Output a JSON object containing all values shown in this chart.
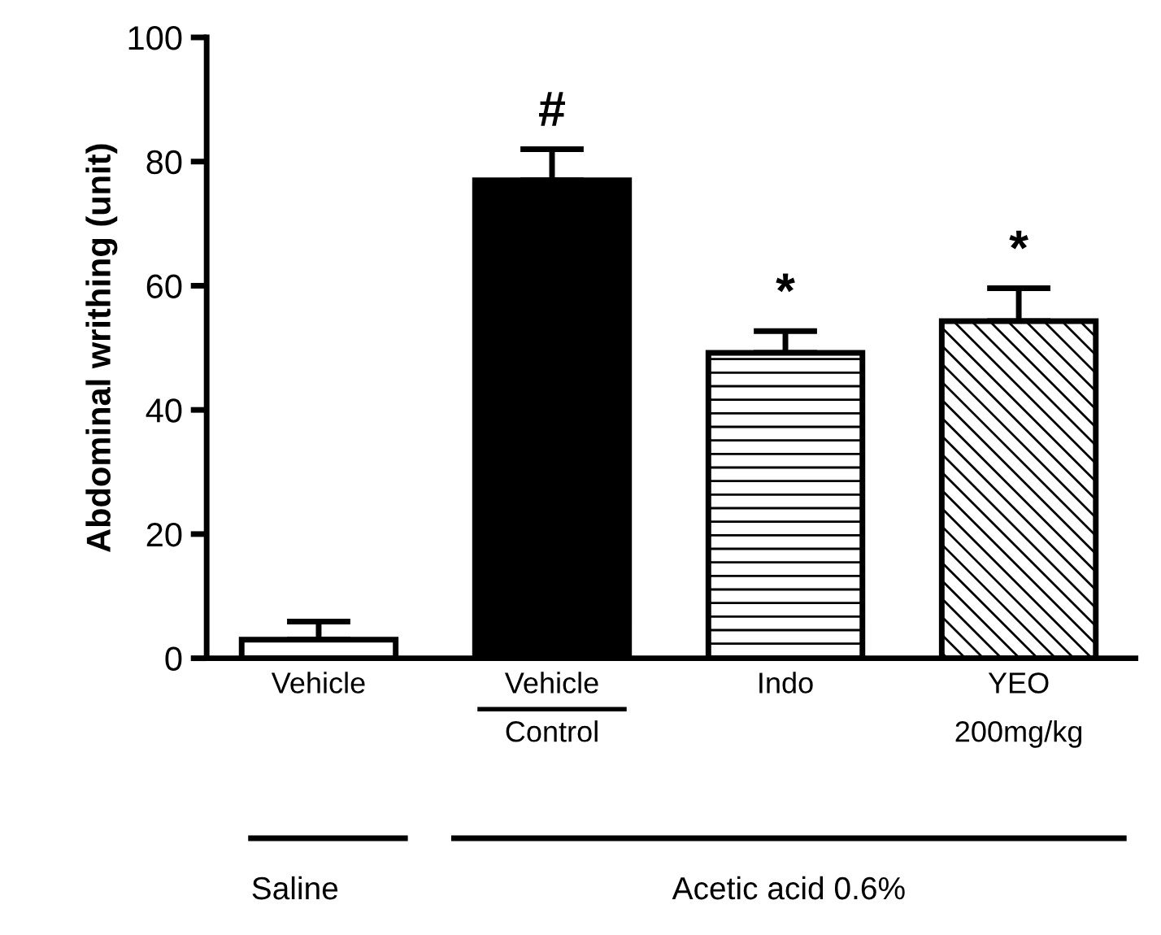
{
  "chart_data": {
    "type": "bar",
    "ylabel": "Abdominal writhing (unit)",
    "categories": [
      "Vehicle",
      "Vehicle\nControl",
      "Indo",
      "YEO\n200mg/kg"
    ],
    "values": [
      3,
      77,
      49.2,
      54.3
    ],
    "colors": [
      "#ffffff",
      "#000000",
      "#ffffff",
      "#ffffff"
    ],
    "errors": [
      [
        3,
        5.9
      ],
      [
        77,
        82
      ],
      [
        49.2,
        52.7
      ],
      [
        54.3,
        59.6
      ]
    ],
    "ylim": [
      0,
      100
    ],
    "yticks": [
      0,
      20,
      40,
      60,
      80,
      100
    ],
    "grid": false,
    "legend": false,
    "annotations": [
      "#",
      "*",
      "*",
      "Saline",
      "Acetic acid 0.6%"
    ]
  }
}
